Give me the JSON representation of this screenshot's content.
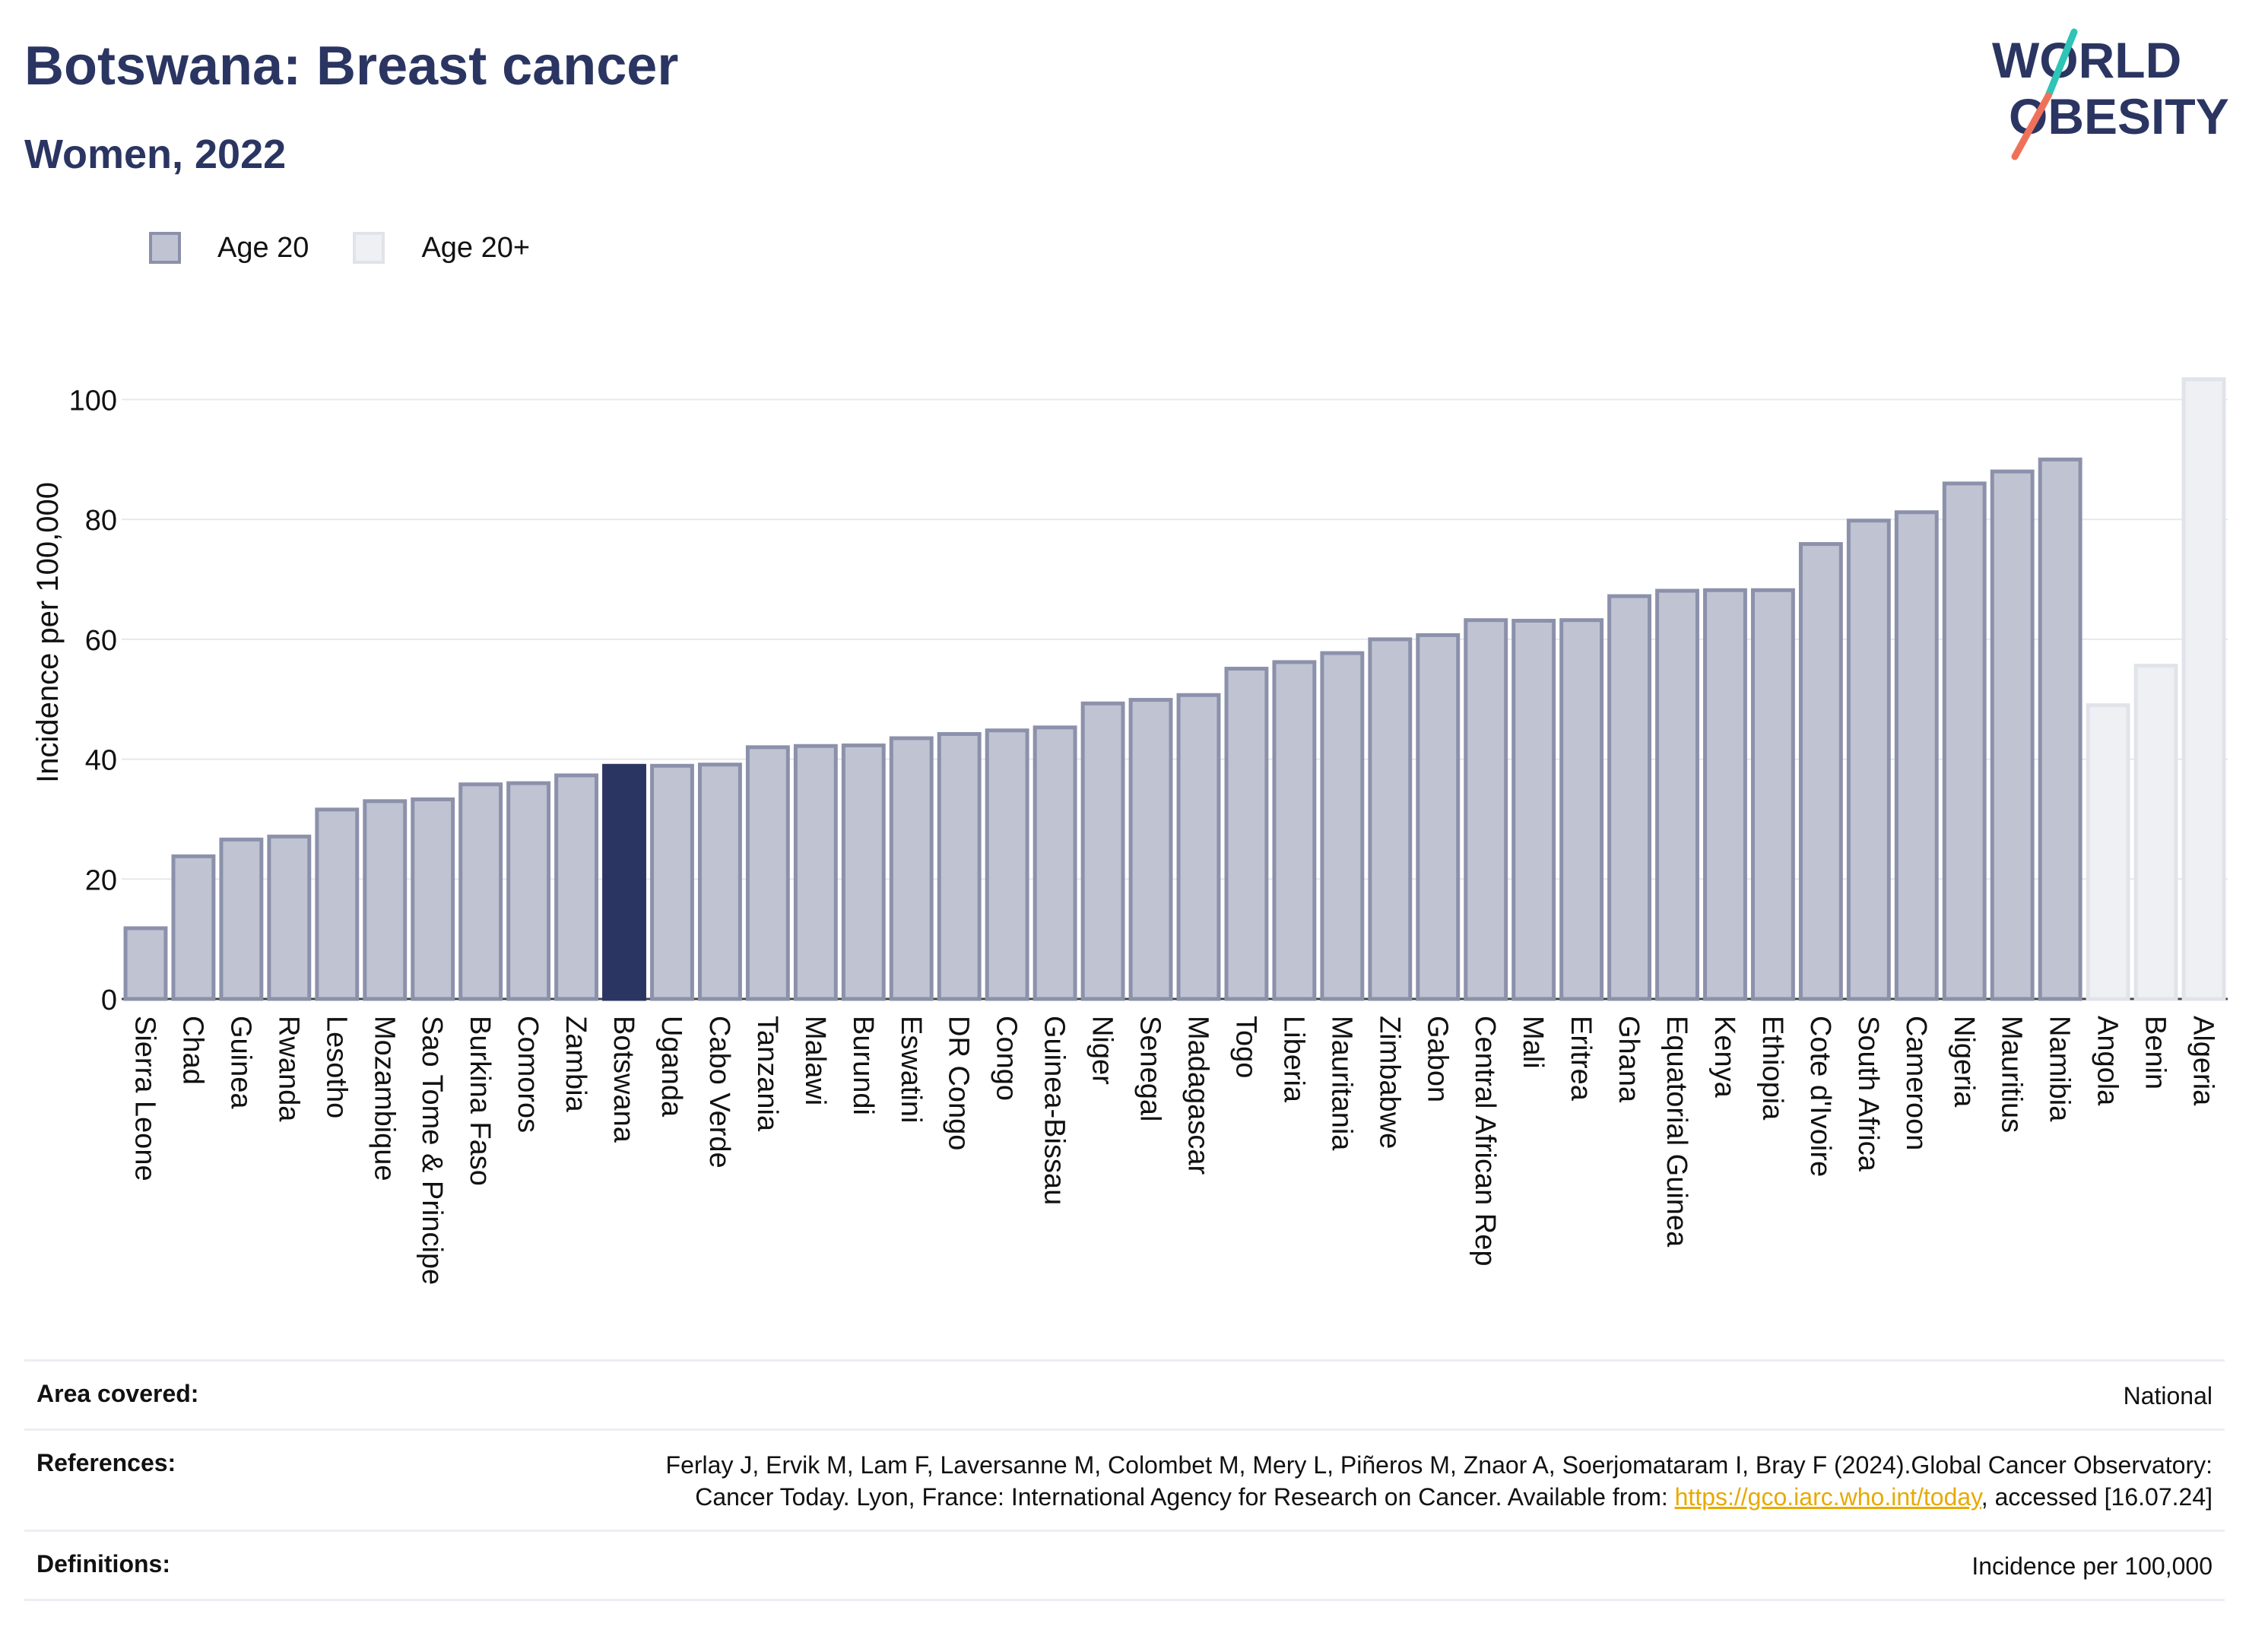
{
  "title": "Botswana: Breast cancer",
  "subtitle": "Women, 2022",
  "logo": {
    "line1": "WORLD",
    "line2": "OBESITY"
  },
  "legend": [
    {
      "label": "Age 20",
      "color": "#c0c3d1"
    },
    {
      "label": "Age 20+",
      "color": "#eef0f4"
    }
  ],
  "colors": {
    "age20_fill": "#c0c3d1",
    "age20_stroke": "#8c91ab",
    "age20plus_fill": "#eef0f4",
    "age20plus_stroke": "#e1e3ea",
    "highlight": "#2b3562"
  },
  "chart_data": {
    "type": "bar",
    "title": "Botswana: Breast cancer",
    "subtitle": "Women, 2022",
    "ylabel": "Incidence per 100,000",
    "xlabel": "",
    "ylim": [
      0,
      104
    ],
    "yticks": [
      0,
      20,
      40,
      60,
      80,
      100
    ],
    "grid": true,
    "legend_position": "top-left",
    "highlight": "Botswana",
    "categories": [
      "Sierra Leone",
      "Chad",
      "Guinea",
      "Rwanda",
      "Lesotho",
      "Mozambique",
      "Sao Tome & Principe",
      "Burkina Faso",
      "Comoros",
      "Zambia",
      "Botswana",
      "Uganda",
      "Cabo Verde",
      "Tanzania",
      "Malawi",
      "Burundi",
      "Eswatini",
      "DR Congo",
      "Congo",
      "Guinea-Bissau",
      "Niger",
      "Senegal",
      "Madagascar",
      "Togo",
      "Liberia",
      "Mauritania",
      "Zimbabwe",
      "Gabon",
      "Central African Rep",
      "Mali",
      "Eritrea",
      "Ghana",
      "Equatorial Guinea",
      "Kenya",
      "Ethiopia",
      "Cote d'Ivoire",
      "South Africa",
      "Cameroon",
      "Nigeria",
      "Mauritius",
      "Namibia",
      "Angola",
      "Benin",
      "Algeria"
    ],
    "values": [
      11.8,
      23.8,
      26.6,
      27.1,
      31.6,
      33.0,
      33.3,
      35.8,
      36.0,
      37.3,
      38.9,
      38.9,
      39.1,
      42.0,
      42.2,
      42.3,
      43.5,
      44.2,
      44.8,
      45.3,
      49.3,
      49.9,
      50.7,
      55.1,
      56.2,
      57.7,
      60.0,
      60.7,
      63.2,
      63.1,
      63.2,
      67.2,
      68.1,
      68.2,
      68.2,
      75.9,
      79.8,
      81.2,
      86.0,
      88.0,
      90.0,
      49.0,
      55.6,
      103.4
    ],
    "groups": [
      "Age 20",
      "Age 20",
      "Age 20",
      "Age 20",
      "Age 20",
      "Age 20",
      "Age 20",
      "Age 20",
      "Age 20",
      "Age 20",
      "Age 20",
      "Age 20",
      "Age 20",
      "Age 20",
      "Age 20",
      "Age 20",
      "Age 20",
      "Age 20",
      "Age 20",
      "Age 20",
      "Age 20",
      "Age 20",
      "Age 20",
      "Age 20",
      "Age 20",
      "Age 20",
      "Age 20",
      "Age 20",
      "Age 20",
      "Age 20",
      "Age 20",
      "Age 20",
      "Age 20",
      "Age 20",
      "Age 20",
      "Age 20",
      "Age 20",
      "Age 20",
      "Age 20",
      "Age 20",
      "Age 20",
      "Age 20+",
      "Age 20+",
      "Age 20+"
    ]
  },
  "info": [
    {
      "label": "Area covered:",
      "value": "National"
    },
    {
      "label": "References:",
      "value_before": "Ferlay J, Ervik M, Lam F, Laversanne M, Colombet M, Mery L, Piñeros M, Znaor A, Soerjomataram I, Bray F (2024).Global Cancer Observatory: Cancer Today. Lyon, France: International Agency for Research on Cancer. Available from: ",
      "link": "https://gco.iarc.who.int/today",
      "value_after": ", accessed [16.07.24]"
    },
    {
      "label": "Definitions:",
      "value": "Incidence per 100,000"
    }
  ]
}
